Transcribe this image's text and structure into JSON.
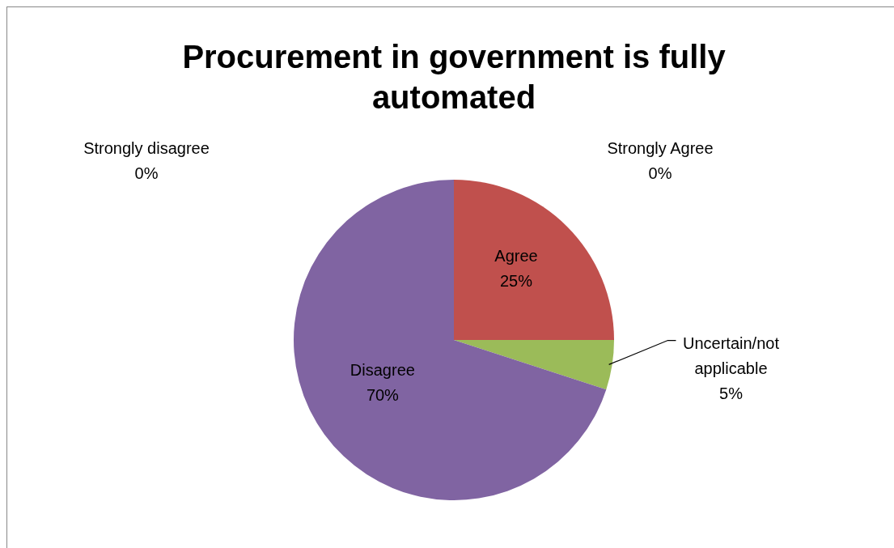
{
  "chart_data": {
    "type": "pie",
    "title": "Procurement in government is fully automated",
    "categories": [
      "Strongly Agree",
      "Agree",
      "Uncertain/not applicable",
      "Disagree",
      "Strongly disagree"
    ],
    "values": [
      0,
      25,
      5,
      70,
      0
    ],
    "value_labels": [
      "0%",
      "25%",
      "5%",
      "70%",
      "0%"
    ],
    "colors": [
      "#4f81bd",
      "#c0504d",
      "#9bbb59",
      "#8064a2",
      "#4bacc6"
    ]
  }
}
